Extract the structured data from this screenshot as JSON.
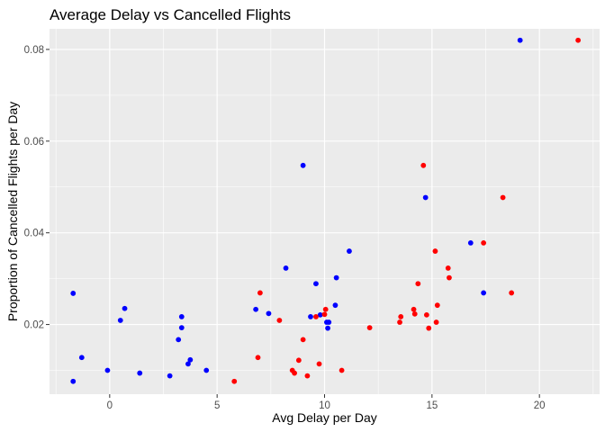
{
  "chart_data": {
    "type": "scatter",
    "title": "Average Delay vs Cancelled Flights",
    "xlabel": "Avg Delay per Day",
    "ylabel": "Proportion of Cancelled Flights per Day",
    "xlim": [
      -2.8,
      22.8
    ],
    "ylim": [
      0.0048,
      0.0845
    ],
    "x_ticks": [
      0,
      5,
      10,
      15,
      20
    ],
    "x_tick_labels": [
      "0",
      "5",
      "10",
      "15",
      "20"
    ],
    "y_ticks": [
      0.02,
      0.04,
      0.06,
      0.08
    ],
    "y_tick_labels": [
      "0.02",
      "0.04",
      "0.06",
      "0.08"
    ],
    "grid": true,
    "legend": "none",
    "panel_color": "#ebebeb",
    "grid_color": "#ffffff",
    "series": [
      {
        "color": "#0000ff",
        "points": [
          {
            "x": -1.7,
            "y": 0.0268
          },
          {
            "x": -1.7,
            "y": 0.0076
          },
          {
            "x": -1.3,
            "y": 0.0128
          },
          {
            "x": -0.1,
            "y": 0.01
          },
          {
            "x": 0.5,
            "y": 0.0209
          },
          {
            "x": 0.7,
            "y": 0.0235
          },
          {
            "x": 1.4,
            "y": 0.0094
          },
          {
            "x": 2.8,
            "y": 0.0088
          },
          {
            "x": 3.2,
            "y": 0.0167
          },
          {
            "x": 3.35,
            "y": 0.0217
          },
          {
            "x": 3.35,
            "y": 0.0193
          },
          {
            "x": 3.65,
            "y": 0.0114
          },
          {
            "x": 3.75,
            "y": 0.0123
          },
          {
            "x": 4.5,
            "y": 0.01
          },
          {
            "x": 6.8,
            "y": 0.0233
          },
          {
            "x": 7.4,
            "y": 0.0224
          },
          {
            "x": 8.2,
            "y": 0.0323
          },
          {
            "x": 9.0,
            "y": 0.0547
          },
          {
            "x": 9.35,
            "y": 0.0217
          },
          {
            "x": 9.6,
            "y": 0.0289
          },
          {
            "x": 9.8,
            "y": 0.0221
          },
          {
            "x": 10.1,
            "y": 0.0205
          },
          {
            "x": 10.2,
            "y": 0.0205
          },
          {
            "x": 10.15,
            "y": 0.0192
          },
          {
            "x": 10.5,
            "y": 0.0242
          },
          {
            "x": 10.55,
            "y": 0.0302
          },
          {
            "x": 11.15,
            "y": 0.036
          },
          {
            "x": 14.7,
            "y": 0.0477
          },
          {
            "x": 16.8,
            "y": 0.0378
          },
          {
            "x": 17.4,
            "y": 0.0269
          },
          {
            "x": 19.1,
            "y": 0.082
          }
        ]
      },
      {
        "color": "#ff0000",
        "points": [
          {
            "x": 5.8,
            "y": 0.0076
          },
          {
            "x": 6.9,
            "y": 0.0128
          },
          {
            "x": 7.0,
            "y": 0.0269
          },
          {
            "x": 7.9,
            "y": 0.0209
          },
          {
            "x": 8.5,
            "y": 0.01
          },
          {
            "x": 8.6,
            "y": 0.0094
          },
          {
            "x": 8.8,
            "y": 0.0122
          },
          {
            "x": 9.0,
            "y": 0.0167
          },
          {
            "x": 9.2,
            "y": 0.0088
          },
          {
            "x": 9.6,
            "y": 0.0217
          },
          {
            "x": 9.75,
            "y": 0.0114
          },
          {
            "x": 10.0,
            "y": 0.0222
          },
          {
            "x": 10.05,
            "y": 0.0233
          },
          {
            "x": 10.8,
            "y": 0.01
          },
          {
            "x": 12.1,
            "y": 0.0193
          },
          {
            "x": 13.5,
            "y": 0.0205
          },
          {
            "x": 13.55,
            "y": 0.0217
          },
          {
            "x": 14.15,
            "y": 0.0233
          },
          {
            "x": 14.2,
            "y": 0.0223
          },
          {
            "x": 14.35,
            "y": 0.0289
          },
          {
            "x": 14.6,
            "y": 0.0547
          },
          {
            "x": 14.75,
            "y": 0.0221
          },
          {
            "x": 14.85,
            "y": 0.0192
          },
          {
            "x": 15.15,
            "y": 0.036
          },
          {
            "x": 15.2,
            "y": 0.0205
          },
          {
            "x": 15.25,
            "y": 0.0242
          },
          {
            "x": 15.75,
            "y": 0.0323
          },
          {
            "x": 15.8,
            "y": 0.0302
          },
          {
            "x": 17.4,
            "y": 0.0378
          },
          {
            "x": 18.3,
            "y": 0.0477
          },
          {
            "x": 18.7,
            "y": 0.0269
          },
          {
            "x": 21.8,
            "y": 0.082
          }
        ]
      }
    ]
  }
}
